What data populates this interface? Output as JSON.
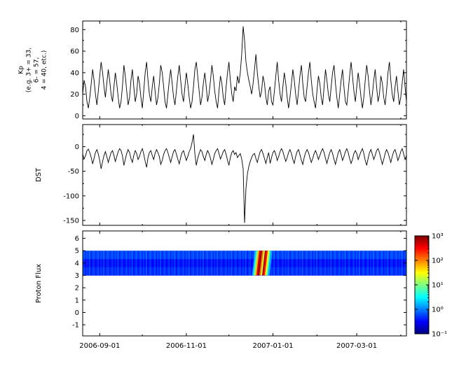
{
  "x_axis": {
    "xlim_days": [
      0,
      228
    ],
    "ticks": [
      {
        "day": 12,
        "label": "2006-09-01"
      },
      {
        "day": 73,
        "label": "2006-11-01"
      },
      {
        "day": 134,
        "label": "2007-01-01"
      },
      {
        "day": 193,
        "label": "2007-03-01"
      }
    ],
    "minor_days": [
      42,
      103,
      165,
      224
    ]
  },
  "chart_data": [
    {
      "id": "kp",
      "type": "line",
      "ylabel_lines": [
        "Kp",
        "(e.g. 3+ = 33,",
        "6- = 57,",
        "4 = 40, etc.)"
      ],
      "ylim": [
        -3,
        88
      ],
      "yticks": [
        0,
        20,
        40,
        60,
        80
      ],
      "yticks_minor": [
        10,
        30,
        50,
        70
      ],
      "line_color": "#000000",
      "day_step": 1,
      "values": [
        20,
        33,
        27,
        13,
        7,
        17,
        30,
        43,
        33,
        20,
        10,
        23,
        37,
        50,
        40,
        27,
        17,
        30,
        43,
        33,
        20,
        13,
        27,
        40,
        30,
        17,
        7,
        13,
        27,
        47,
        37,
        23,
        10,
        17,
        33,
        43,
        27,
        13,
        20,
        37,
        30,
        17,
        7,
        23,
        40,
        50,
        33,
        20,
        13,
        27,
        37,
        23,
        10,
        17,
        30,
        47,
        40,
        27,
        13,
        7,
        20,
        33,
        43,
        30,
        17,
        10,
        23,
        37,
        47,
        33,
        20,
        13,
        27,
        40,
        30,
        17,
        7,
        13,
        27,
        43,
        50,
        37,
        23,
        10,
        17,
        30,
        40,
        27,
        13,
        20,
        33,
        47,
        37,
        23,
        13,
        7,
        23,
        37,
        30,
        17,
        10,
        27,
        40,
        50,
        33,
        20,
        13,
        27,
        23,
        37,
        30,
        40,
        57,
        83,
        70,
        50,
        40,
        33,
        27,
        20,
        30,
        43,
        57,
        40,
        27,
        17,
        23,
        37,
        30,
        17,
        10,
        23,
        27,
        13,
        10,
        23,
        37,
        50,
        33,
        20,
        13,
        27,
        40,
        30,
        17,
        7,
        17,
        30,
        43,
        33,
        20,
        10,
        23,
        37,
        47,
        30,
        17,
        13,
        27,
        40,
        50,
        33,
        20,
        13,
        7,
        23,
        37,
        30,
        17,
        10,
        27,
        43,
        33,
        20,
        13,
        27,
        40,
        47,
        30,
        17,
        7,
        20,
        33,
        43,
        27,
        13,
        10,
        23,
        37,
        50,
        37,
        23,
        13,
        27,
        40,
        30,
        17,
        7,
        17,
        33,
        47,
        37,
        23,
        10,
        20,
        33,
        43,
        27,
        13,
        20,
        37,
        30,
        17,
        10,
        23,
        40,
        50,
        33,
        20,
        13,
        27,
        37,
        23,
        10,
        17,
        30,
        43,
        27,
        13
      ]
    },
    {
      "id": "dst",
      "type": "line",
      "ylabel": "DST",
      "ylim": [
        -160,
        45
      ],
      "yticks": [
        0,
        -50,
        -100,
        -150
      ],
      "yticks_minor": [
        25,
        -25,
        -75,
        -125
      ],
      "line_color": "#000000",
      "day_step": 1,
      "values": [
        -15,
        -25,
        -18,
        -8,
        -5,
        -12,
        -22,
        -35,
        -24,
        -12,
        -6,
        -15,
        -28,
        -45,
        -30,
        -18,
        -10,
        -20,
        -32,
        -22,
        -12,
        -8,
        -18,
        -30,
        -20,
        -10,
        -4,
        -8,
        -18,
        -38,
        -26,
        -14,
        -6,
        -12,
        -24,
        -32,
        -18,
        -8,
        -14,
        -26,
        -20,
        -10,
        -4,
        -15,
        -30,
        -42,
        -22,
        -12,
        -8,
        -18,
        -26,
        -14,
        -6,
        -12,
        -20,
        -36,
        -28,
        -16,
        -8,
        -4,
        -12,
        -22,
        -32,
        -20,
        -10,
        -6,
        -15,
        -26,
        -35,
        -22,
        -12,
        -8,
        -18,
        -28,
        -20,
        -10,
        -4,
        8,
        25,
        -15,
        -38,
        -24,
        -14,
        -6,
        -10,
        -20,
        -28,
        -16,
        -8,
        -14,
        -24,
        -36,
        -26,
        -14,
        -8,
        -4,
        -14,
        -25,
        -18,
        -10,
        -6,
        -16,
        -28,
        -38,
        -22,
        -12,
        -8,
        -16,
        -12,
        -22,
        -18,
        -14,
        -25,
        -45,
        -155,
        -85,
        -55,
        -40,
        -30,
        -22,
        -16,
        -14,
        -24,
        -32,
        -20,
        -10,
        -6,
        -14,
        -24,
        -34,
        -22,
        -12,
        -34,
        -22,
        -12,
        -8,
        -16,
        -28,
        -20,
        -10,
        -4,
        -10,
        -20,
        -30,
        -22,
        -12,
        -6,
        -14,
        -26,
        -34,
        -20,
        -10,
        -6,
        -16,
        -28,
        -36,
        -22,
        -12,
        -6,
        -12,
        -22,
        -32,
        -24,
        -14,
        -8,
        -16,
        -26,
        -18,
        -10,
        -4,
        -12,
        -24,
        -34,
        -22,
        -12,
        -6,
        -14,
        -26,
        -36,
        -24,
        -12,
        -6,
        -16,
        -28,
        -20,
        -10,
        -4,
        -12,
        -24,
        -34,
        -26,
        -14,
        -8,
        -14,
        -26,
        -18,
        -10,
        -4,
        -14,
        -28,
        -38,
        -24,
        -12,
        -6,
        -16,
        -26,
        -18,
        -8,
        -4,
        -12,
        -24,
        -36,
        -26,
        -14,
        -6,
        -12,
        -22,
        -32,
        -20,
        -10,
        -6,
        -16,
        -28,
        -20,
        -10,
        -4,
        -14,
        -26,
        -18
      ]
    },
    {
      "id": "proton",
      "type": "heatmap",
      "ylabel": "Proton Flux",
      "ylim": [
        -1.9,
        6.6
      ],
      "yticks": [
        -1,
        0,
        1,
        2,
        3,
        4,
        5,
        6
      ],
      "yticks_minor": [],
      "band_y": [
        3,
        5
      ],
      "scale": "log",
      "clim": [
        0.1,
        1000
      ],
      "background_pattern": [
        0.45,
        0.62,
        0.38,
        0.55,
        0.42,
        0.68,
        0.35,
        0.5,
        0.6,
        0.4
      ],
      "events": [
        {
          "day": 120,
          "value": 2
        },
        {
          "day": 121,
          "value": 9
        },
        {
          "day": 122,
          "value": 60
        },
        {
          "day": 123,
          "value": 400
        },
        {
          "day": 124,
          "value": 900
        },
        {
          "day": 125,
          "value": 120
        },
        {
          "day": 126,
          "value": 20
        },
        {
          "day": 127,
          "value": 600
        },
        {
          "day": 128,
          "value": 250
        },
        {
          "day": 129,
          "value": 35
        },
        {
          "day": 130,
          "value": 6
        },
        {
          "day": 131,
          "value": 1.5
        }
      ],
      "colorbar": {
        "ticks": [
          {
            "label": "10³",
            "value": 1000
          },
          {
            "label": "10²",
            "value": 100
          },
          {
            "label": "10¹",
            "value": 10
          },
          {
            "label": "10⁰",
            "value": 1
          },
          {
            "label": "10⁻¹",
            "value": 0.1
          }
        ]
      }
    }
  ]
}
